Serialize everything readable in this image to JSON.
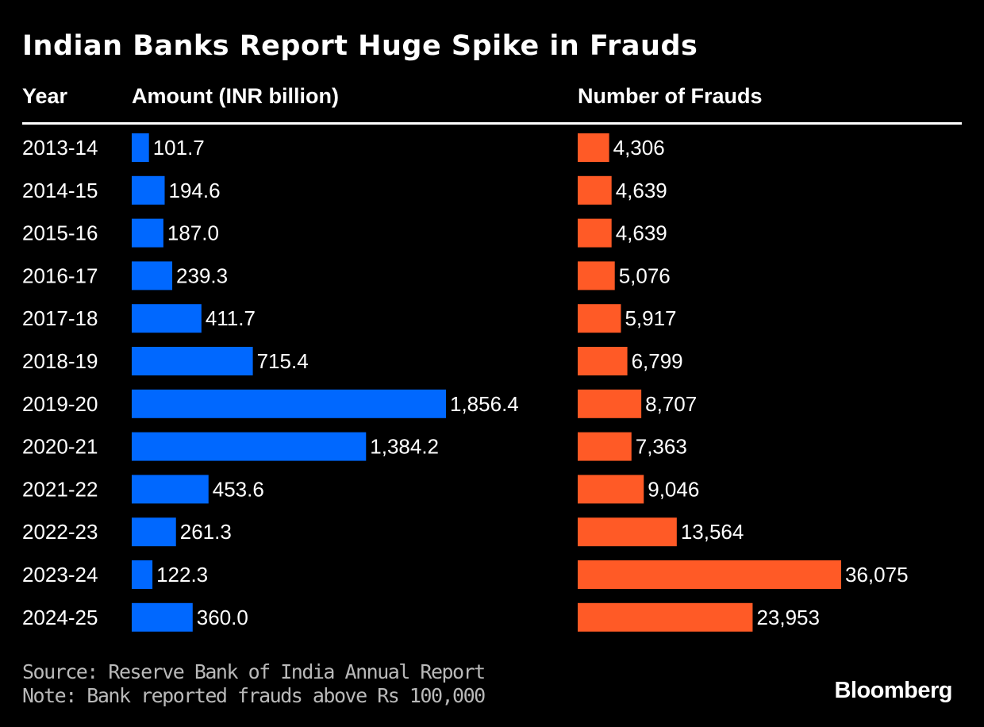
{
  "title": "Indian Banks Report Huge Spike in Frauds",
  "headers": {
    "year": "Year",
    "amount": "Amount (INR billion)",
    "count": "Number of Frauds"
  },
  "chart_data": {
    "type": "bar",
    "orientation": "horizontal",
    "title": "Indian Banks Report Huge Spike in Frauds",
    "categories": [
      "2013-14",
      "2014-15",
      "2015-16",
      "2016-17",
      "2017-18",
      "2018-19",
      "2019-20",
      "2020-21",
      "2021-22",
      "2022-23",
      "2023-24",
      "2024-25"
    ],
    "series": [
      {
        "name": "Amount (INR billion)",
        "color": "#0068ff",
        "values": [
          101.7,
          194.6,
          187.0,
          239.3,
          411.7,
          715.4,
          1856.4,
          1384.2,
          453.6,
          261.3,
          122.3,
          360.0
        ],
        "labels": [
          "101.7",
          "194.6",
          "187.0",
          "239.3",
          "411.7",
          "715.4",
          "1,856.4",
          "1,384.2",
          "453.6",
          "261.3",
          "122.3",
          "360.0"
        ]
      },
      {
        "name": "Number of Frauds",
        "color": "#ff5a26",
        "values": [
          4306,
          4639,
          4639,
          5076,
          5917,
          6799,
          8707,
          7363,
          9046,
          13564,
          36075,
          23953
        ],
        "labels": [
          "4,306",
          "4,639",
          "4,639",
          "5,076",
          "5,917",
          "6,799",
          "8,707",
          "7,363",
          "9,046",
          "13,564",
          "36,075",
          "23,953"
        ]
      }
    ],
    "legend": "column headers"
  },
  "footer": {
    "source": "Source: Reserve Bank of India Annual Report",
    "note": "Note: Bank reported frauds above Rs 100,000"
  },
  "logo": "Bloomberg"
}
